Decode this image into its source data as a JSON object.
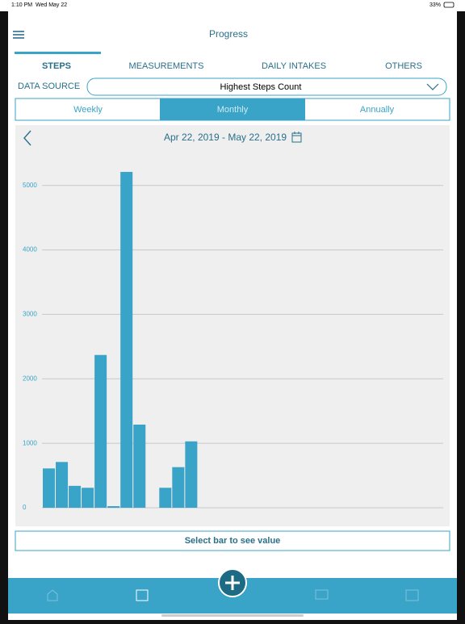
{
  "status": {
    "time": "1:10 PM",
    "date": "Wed May 22",
    "battery": "33%"
  },
  "header": {
    "title": "Progress"
  },
  "tabs": [
    "STEPS",
    "MEASUREMENTS",
    "DAILY INTAKES",
    "OTHERS"
  ],
  "data_source": {
    "label": "DATA SOURCE",
    "value": "Highest Steps Count"
  },
  "periods": [
    "Weekly",
    "Monthly",
    "Annually"
  ],
  "date_range": "Apr 22, 2019 - May 22, 2019",
  "footer_note": "Select bar to see value",
  "chart_data": {
    "type": "bar",
    "color": "#3aa3c8",
    "categories": [
      null,
      null,
      null,
      null,
      null,
      null,
      null,
      null,
      null,
      null,
      null,
      null,
      null,
      null,
      null,
      null,
      null,
      null,
      null,
      null,
      null,
      null,
      null,
      null,
      null,
      null,
      null,
      null,
      null,
      null,
      null
    ],
    "values": [
      610,
      710,
      340,
      310,
      2370,
      25,
      5210,
      1290,
      0,
      310,
      630,
      1030,
      0,
      0,
      0,
      0,
      0,
      0,
      0,
      0,
      0,
      0,
      0,
      0,
      0,
      0,
      0,
      0,
      0,
      0,
      0
    ],
    "ylim": [
      0,
      5560
    ],
    "yticks": [
      0,
      1000,
      2000,
      3000,
      4000,
      5000
    ],
    "grid": true
  }
}
